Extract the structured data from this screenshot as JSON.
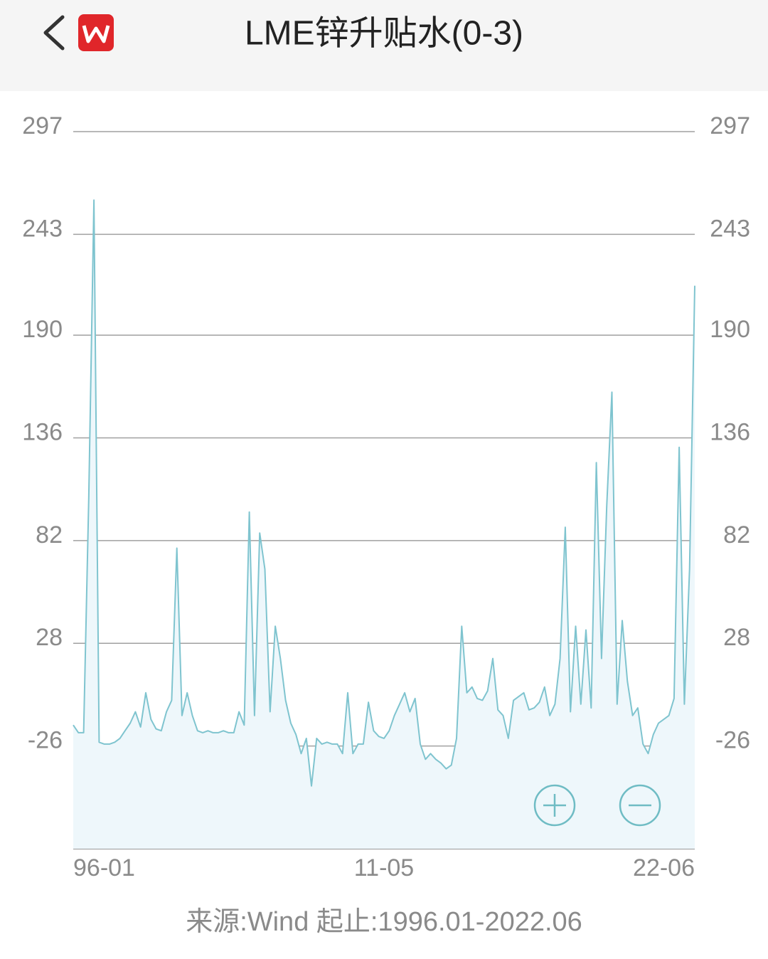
{
  "chart_data": {
    "type": "line",
    "title": "LME锌升贴水(0-3)",
    "source": "来源:Wind 起止:1996.01-2022.06",
    "categories": [
      "96-01",
      null,
      null,
      null,
      null,
      null,
      null,
      null,
      null,
      null,
      null,
      null,
      null,
      null,
      null,
      null,
      null,
      null,
      null,
      null,
      null,
      null,
      null,
      null,
      null,
      null,
      null,
      null,
      null,
      null,
      null,
      null,
      null,
      null,
      null,
      null,
      null,
      null,
      null,
      null,
      null,
      null,
      null,
      null,
      null,
      null,
      null,
      null,
      null,
      null,
      null,
      null,
      null,
      null,
      null,
      null,
      null,
      null,
      null,
      null,
      "11-05",
      null,
      null,
      null,
      null,
      null,
      null,
      null,
      null,
      null,
      null,
      null,
      null,
      null,
      null,
      null,
      null,
      null,
      null,
      null,
      null,
      null,
      null,
      null,
      null,
      null,
      null,
      null,
      null,
      null,
      null,
      null,
      null,
      null,
      null,
      null,
      null,
      null,
      null,
      null,
      null,
      null,
      null,
      null,
      null,
      null,
      null,
      null,
      null,
      null,
      null,
      null,
      null,
      null,
      null,
      null,
      null,
      null,
      null,
      null,
      "22-06"
    ],
    "values": [
      -15,
      -19,
      -19,
      104,
      261,
      -24,
      -25,
      -25,
      -24,
      -22,
      -18,
      -14,
      -8,
      -16,
      2,
      -12,
      -17,
      -18,
      -8,
      -2,
      78,
      -10,
      2,
      -10,
      -18,
      -19,
      -18,
      -19,
      -19,
      -18,
      -19,
      -19,
      -8,
      -15,
      97,
      -10,
      86,
      67,
      -8,
      37,
      20,
      -2,
      -14,
      -20,
      -30,
      -22,
      -47,
      -22,
      -25,
      -24,
      -25,
      -25,
      -30,
      2,
      -30,
      -25,
      -25,
      -3,
      -18,
      -21,
      -22,
      -18,
      -10,
      -4,
      2,
      -8,
      -1,
      -25,
      -33,
      -30,
      -33,
      -35,
      -38,
      -36,
      -22,
      37,
      2,
      5,
      -1,
      -2,
      3,
      20,
      -7,
      -10,
      -22,
      -2,
      0,
      2,
      -7,
      -6,
      -3,
      5,
      -10,
      -4,
      20,
      89,
      -8,
      37,
      -4,
      35,
      -6,
      123,
      20,
      100,
      160,
      -4,
      40,
      8,
      -10,
      -6,
      -25,
      -30,
      -20,
      -14,
      -12,
      -10,
      -1,
      131,
      -4,
      67,
      216
    ],
    "color": "#7fc4cf",
    "ylim": [
      -80,
      297
    ],
    "yticks": [
      -26,
      28,
      82,
      136,
      190,
      243,
      297
    ],
    "grid": true
  }
}
